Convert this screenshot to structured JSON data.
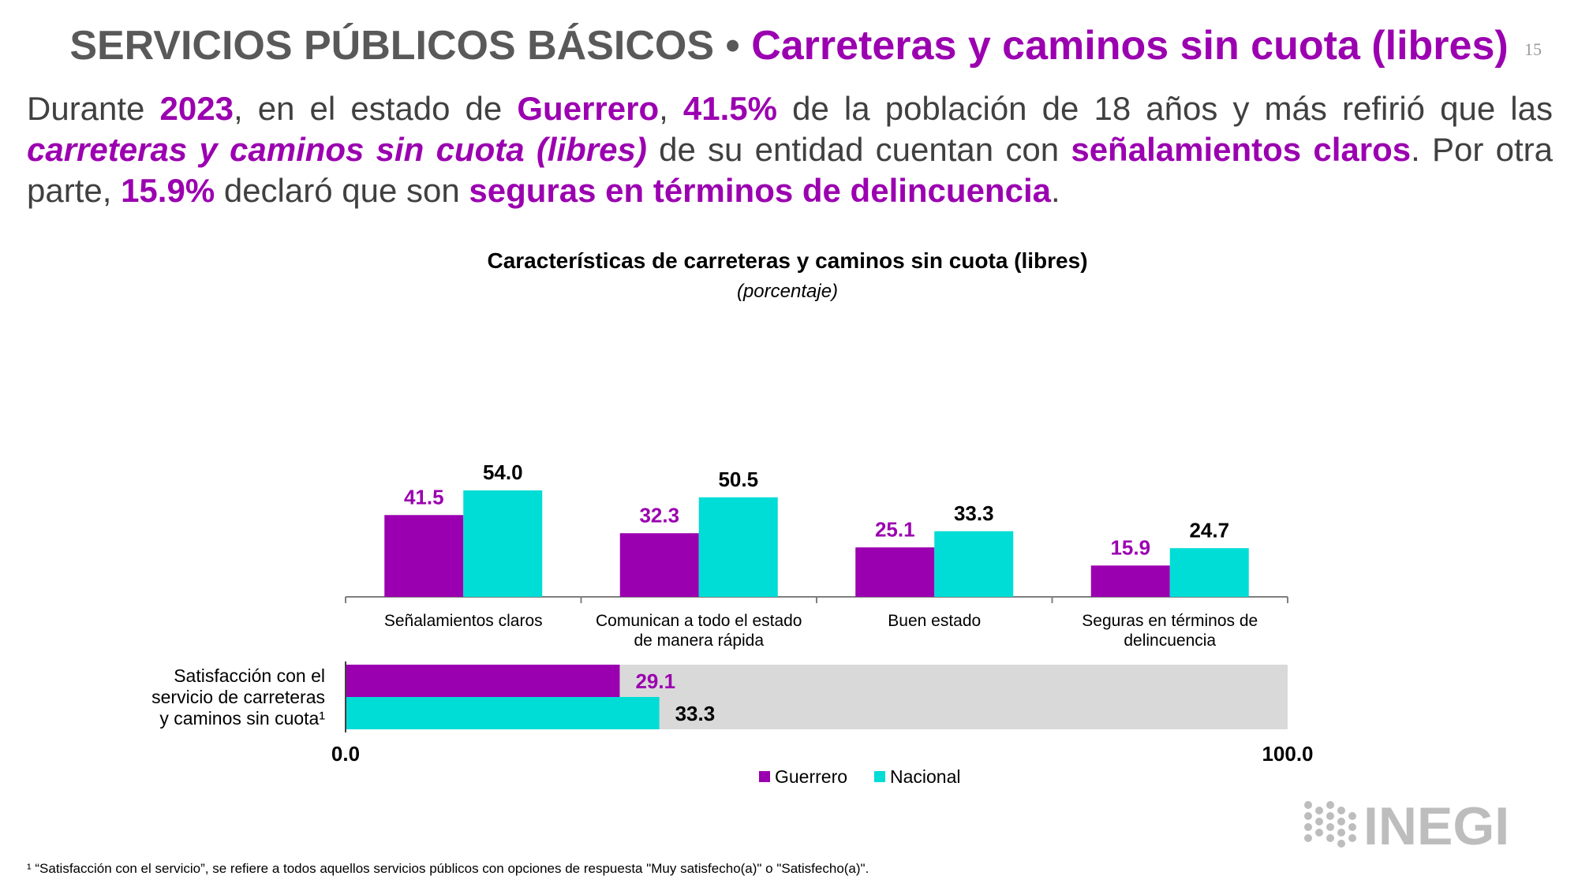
{
  "header": {
    "title_main": "SERVICIOS PÚBLICOS BÁSICOS",
    "title_sep": "•",
    "title_sub": "Carreteras y caminos sin cuota (libres)",
    "page_number": "15"
  },
  "intro": {
    "p1": "Durante ",
    "year": "2023",
    "p2": ", en el estado de ",
    "state": "Guerrero",
    "p3": ", ",
    "pct1": "41.5%",
    "p4": " de la población de 18 años y más refirió que las ",
    "topic": "carreteras y caminos sin cuota (libres)",
    "p5": " de su entidad cuentan con ",
    "feature1": "señalamientos claros",
    "p6": ". Por otra parte, ",
    "pct2": "15.9%",
    "p7": " declaró que son ",
    "feature2": "seguras en términos de delincuencia",
    "p8": "."
  },
  "chart_data": [
    {
      "type": "bar",
      "title": "Características de carreteras y caminos sin cuota (libres)",
      "subtitle": "(porcentaje)",
      "categories": [
        [
          "Señalamientos claros"
        ],
        [
          "Comunican a todo el estado",
          "de manera rápida"
        ],
        [
          "Buen estado"
        ],
        [
          "Seguras en términos de",
          "delincuencia"
        ]
      ],
      "series": [
        {
          "name": "Guerrero",
          "values": [
            41.5,
            32.3,
            25.1,
            15.9
          ],
          "labels": [
            "41.5",
            "32.3",
            "25.1",
            "15.9"
          ]
        },
        {
          "name": "Nacional",
          "values": [
            54.0,
            50.5,
            33.3,
            24.7
          ],
          "labels": [
            "54.0",
            "50.5",
            "33.3",
            "24.7"
          ]
        }
      ],
      "ylim": [
        0,
        60
      ]
    },
    {
      "type": "bar",
      "orientation": "horizontal",
      "category_label": [
        "Satisfacción con el",
        "servicio de carreteras",
        "y caminos sin cuota¹"
      ],
      "series": [
        {
          "name": "Guerrero",
          "value": 29.1,
          "label": "29.1"
        },
        {
          "name": "Nacional",
          "value": 33.3,
          "label": "33.3"
        }
      ],
      "xlim": [
        0,
        100
      ],
      "axis_labels": [
        "0.0",
        "100.0"
      ]
    }
  ],
  "legend": [
    {
      "name": "Guerrero",
      "color": "#9b00b0"
    },
    {
      "name": "Nacional",
      "color": "#00dcd6"
    }
  ],
  "colors": {
    "guerrero": "#9b00b0",
    "nacional": "#00dcd6",
    "track": "#d9d9d9"
  },
  "footnote": "¹ “Satisfacción con el servicio”, se refiere a todos aquellos servicios públicos con opciones de respuesta \"Muy satisfecho(a)\" o \"Satisfecho(a)\".",
  "logo": {
    "icon": "inegi-logo",
    "text": "INEGI"
  }
}
